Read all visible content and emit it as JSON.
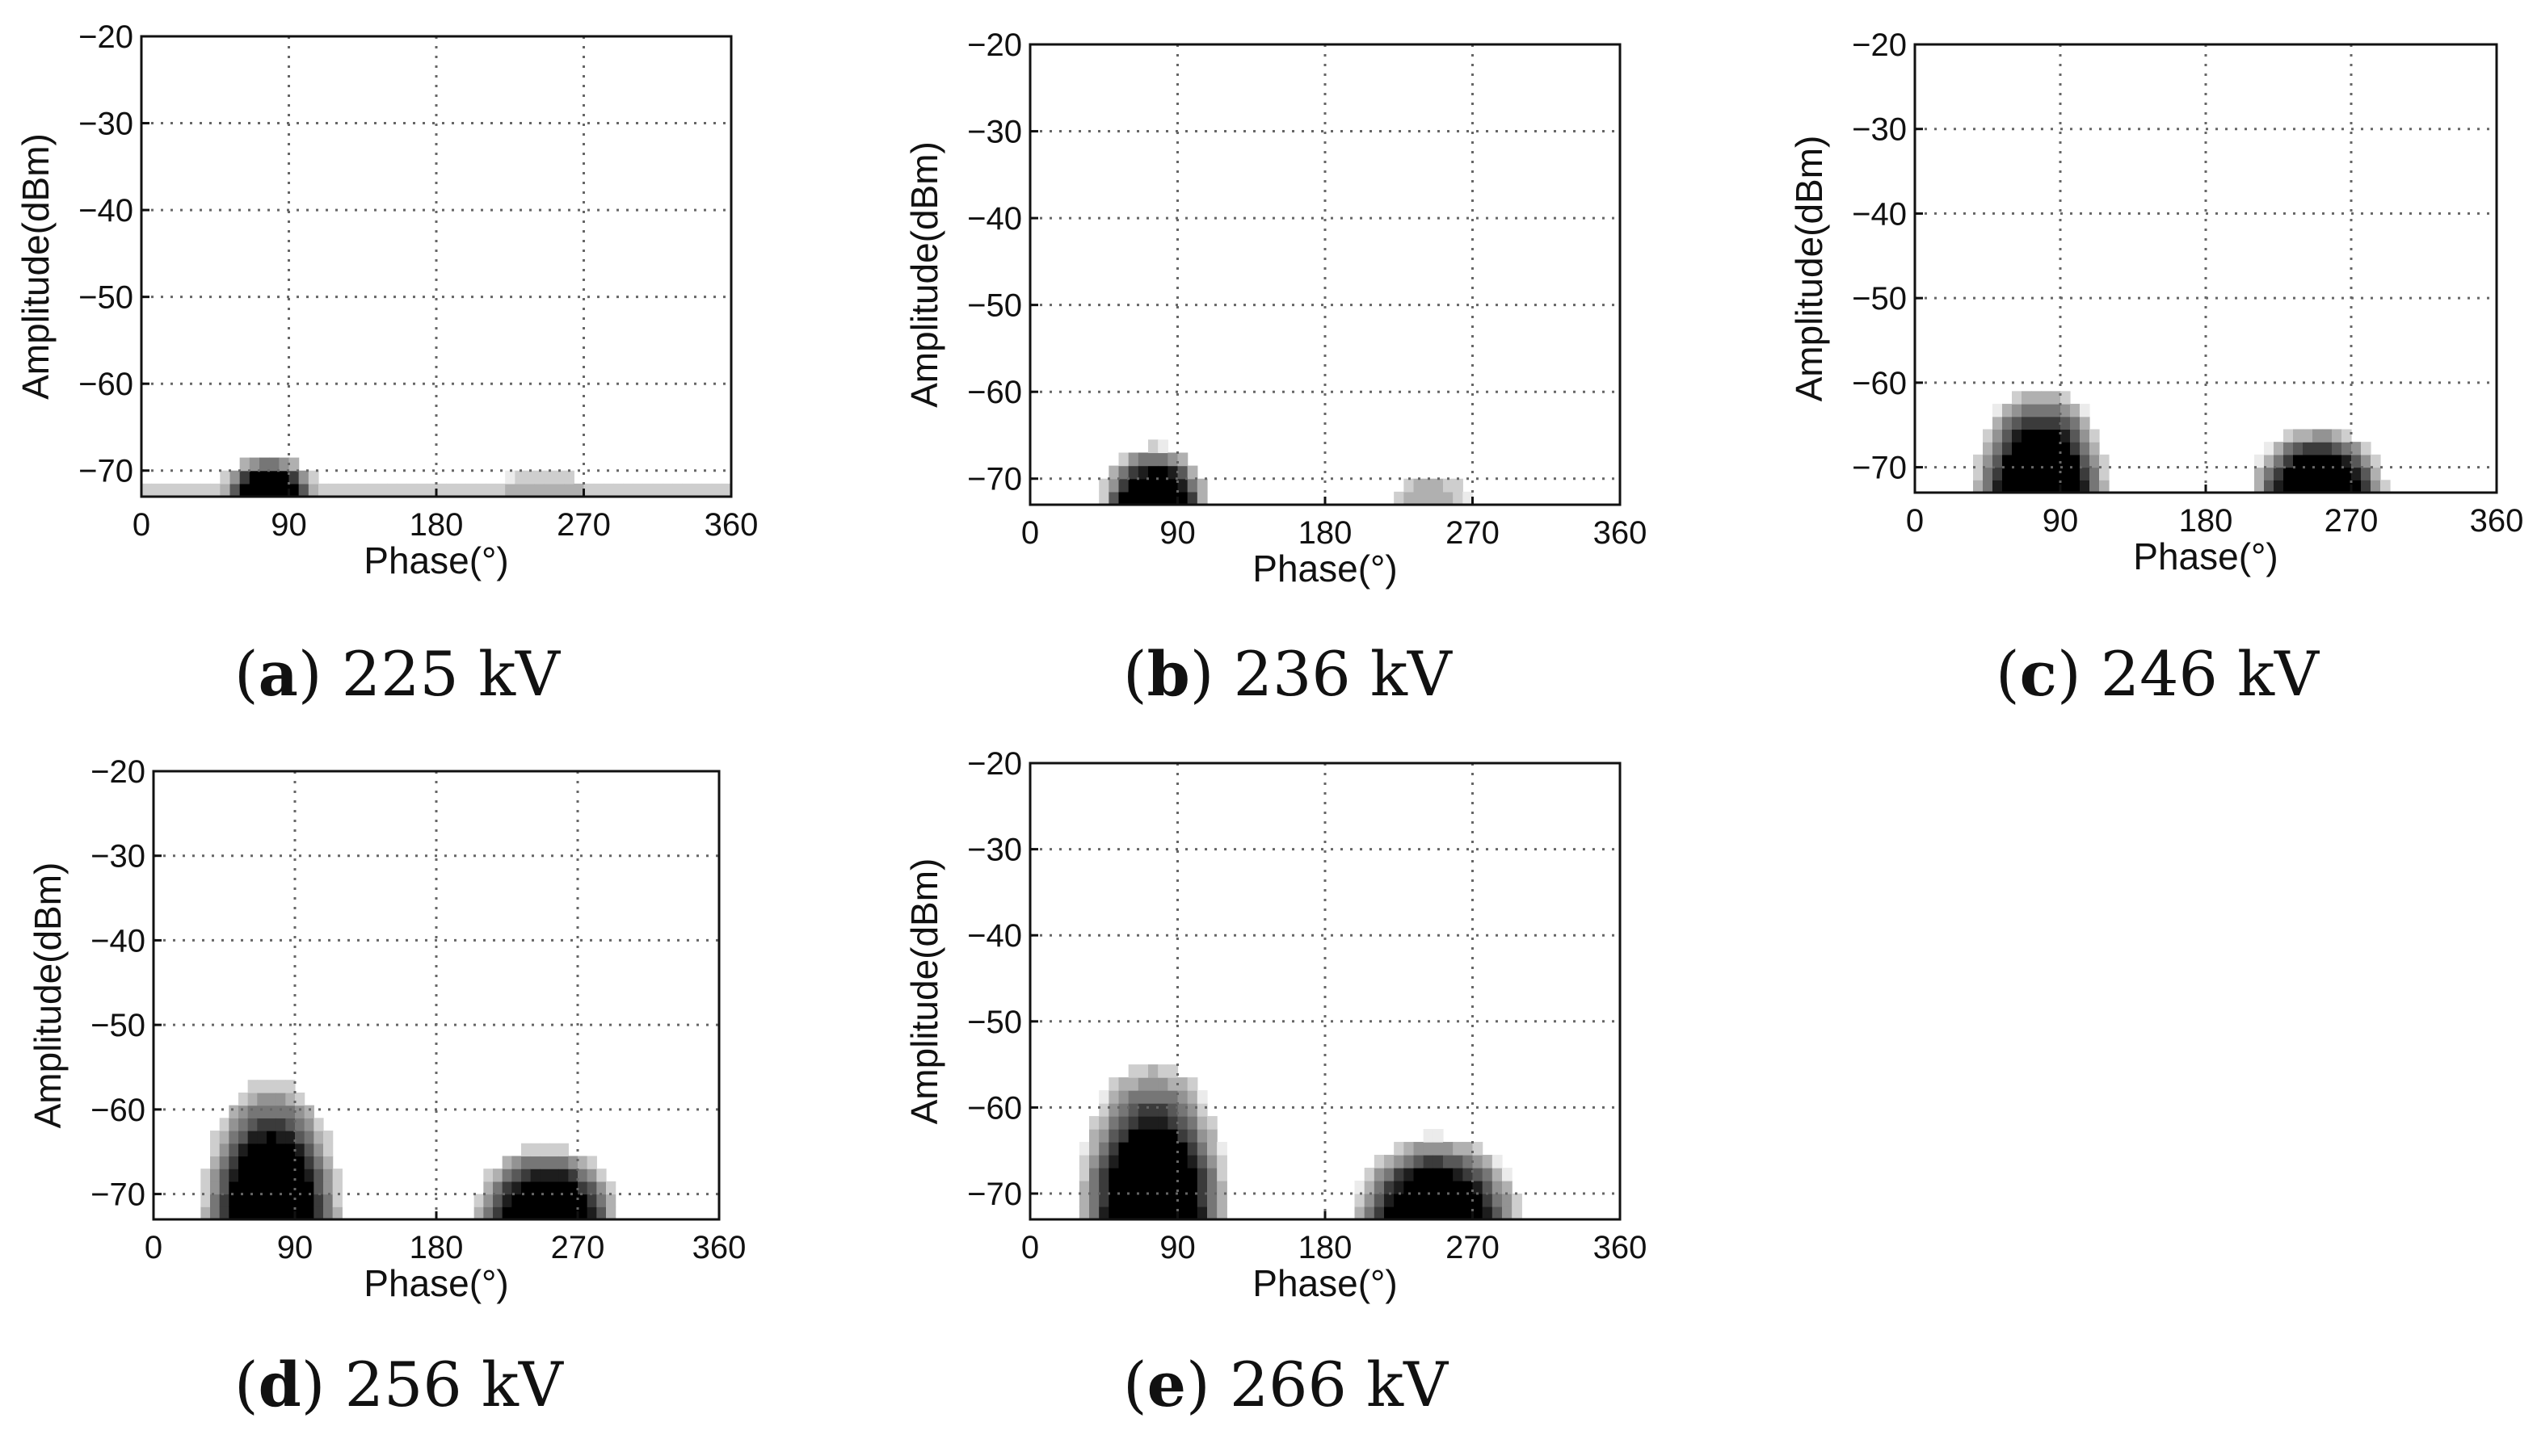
{
  "chart_data": [
    {
      "type": "heatmap",
      "panel_letter": "a",
      "voltage": "225 kV",
      "xlabel": "Phase(°)",
      "ylabel": "Amplitude(dBm)",
      "xlim": [
        0,
        360
      ],
      "ylim": [
        -73,
        -20
      ],
      "x_ticks": [
        "0",
        "90",
        "180",
        "270",
        "360"
      ],
      "y_ticks": [
        "−20",
        "−30",
        "−40",
        "−50",
        "−60",
        "−70"
      ],
      "grid": true,
      "clusters": [
        {
          "center_phase": 78,
          "phase_halfwidth": 32,
          "peak_amplitude": -68,
          "max_density": 0.95
        },
        {
          "center_phase": 245,
          "phase_halfwidth": 40,
          "peak_amplitude": -70,
          "max_density": 0.25
        }
      ],
      "baseline": {
        "from_phase": 0,
        "to_phase": 360,
        "density": 0.18
      }
    },
    {
      "type": "heatmap",
      "panel_letter": "b",
      "voltage": "236 kV",
      "xlabel": "Phase(°)",
      "ylabel": "Amplitude(dBm)",
      "xlim": [
        0,
        360
      ],
      "ylim": [
        -73,
        -20
      ],
      "x_ticks": [
        "0",
        "90",
        "180",
        "270",
        "360"
      ],
      "y_ticks": [
        "−20",
        "−30",
        "−40",
        "−50",
        "−60",
        "−70"
      ],
      "grid": true,
      "clusters": [
        {
          "center_phase": 76,
          "phase_halfwidth": 34,
          "peak_amplitude": -66,
          "max_density": 1.0
        },
        {
          "center_phase": 245,
          "phase_halfwidth": 25,
          "peak_amplitude": -69,
          "max_density": 0.25
        }
      ],
      "baseline": null
    },
    {
      "type": "heatmap",
      "panel_letter": "c",
      "voltage": "246 kV",
      "xlabel": "Phase(°)",
      "ylabel": "Amplitude(dBm)",
      "xlim": [
        0,
        360
      ],
      "ylim": [
        -73,
        -20
      ],
      "x_ticks": [
        "0",
        "90",
        "180",
        "270",
        "360"
      ],
      "y_ticks": [
        "−20",
        "−30",
        "−40",
        "−50",
        "−60",
        "−70"
      ],
      "grid": true,
      "clusters": [
        {
          "center_phase": 78,
          "phase_halfwidth": 43,
          "peak_amplitude": -60,
          "max_density": 1.0
        },
        {
          "center_phase": 250,
          "phase_halfwidth": 43,
          "peak_amplitude": -65,
          "max_density": 1.0
        }
      ],
      "baseline": null
    },
    {
      "type": "heatmap",
      "panel_letter": "d",
      "voltage": "256 kV",
      "xlabel": "Phase(°)",
      "ylabel": "Amplitude(dBm)",
      "xlim": [
        0,
        360
      ],
      "ylim": [
        -73,
        -20
      ],
      "x_ticks": [
        "0",
        "90",
        "180",
        "270",
        "360"
      ],
      "y_ticks": [
        "−20",
        "−30",
        "−40",
        "−50",
        "−60",
        "−70"
      ],
      "grid": true,
      "clusters": [
        {
          "center_phase": 75,
          "phase_halfwidth": 46,
          "peak_amplitude": -56,
          "max_density": 1.0
        },
        {
          "center_phase": 250,
          "phase_halfwidth": 48,
          "peak_amplitude": -64,
          "max_density": 1.0
        }
      ],
      "baseline": null
    },
    {
      "type": "heatmap",
      "panel_letter": "e",
      "voltage": "266 kV",
      "xlabel": "Phase(°)",
      "ylabel": "Amplitude(dBm)",
      "xlim": [
        0,
        360
      ],
      "ylim": [
        -73,
        -20
      ],
      "x_ticks": [
        "0",
        "90",
        "180",
        "270",
        "360"
      ],
      "y_ticks": [
        "−20",
        "−30",
        "−40",
        "−50",
        "−60",
        "−70"
      ],
      "grid": true,
      "clusters": [
        {
          "center_phase": 75,
          "phase_halfwidth": 48,
          "peak_amplitude": -54,
          "max_density": 1.0
        },
        {
          "center_phase": 248,
          "phase_halfwidth": 52,
          "peak_amplitude": -63,
          "max_density": 1.0
        }
      ],
      "baseline": null
    }
  ]
}
